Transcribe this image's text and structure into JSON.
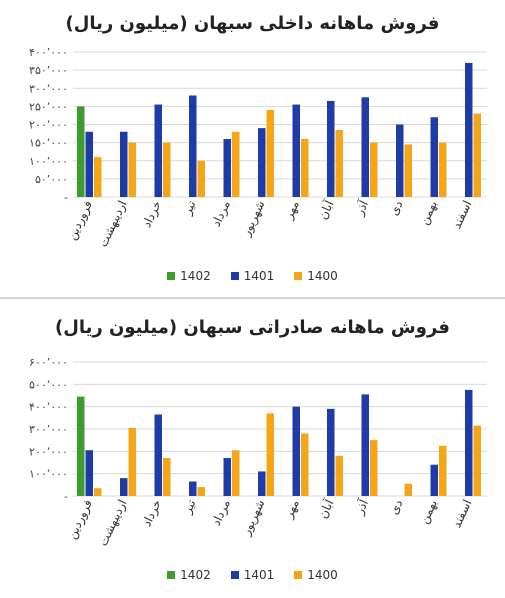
{
  "colors": {
    "s1402": "#3e9b2e",
    "s1401": "#1f3ba8",
    "s1400": "#f5a618"
  },
  "chart_data": [
    {
      "type": "bar",
      "title": "فروش ماهانه داخلی سبهان (میلیون ریال)",
      "categories": [
        "فروردین",
        "اردیبهشت",
        "خرداد",
        "تیر",
        "مرداد",
        "شهریور",
        "مهر",
        "آبان",
        "آذر",
        "دی",
        "بهمن",
        "اسفند"
      ],
      "ylim": [
        0,
        400000
      ],
      "yticks": [
        0,
        50000,
        100000,
        150000,
        200000,
        250000,
        300000,
        350000,
        400000
      ],
      "ytick_labels": [
        "-",
        "۵۰٬۰۰۰",
        "۱۰۰٬۰۰۰",
        "۱۵۰٬۰۰۰",
        "۲۰۰٬۰۰۰",
        "۲۵۰٬۰۰۰",
        "۳۰۰٬۰۰۰",
        "۳۵۰٬۰۰۰",
        "۴۰۰٬۰۰۰"
      ],
      "series": [
        {
          "name": "1402",
          "values": [
            250000,
            null,
            null,
            null,
            null,
            null,
            null,
            null,
            null,
            null,
            null,
            null
          ]
        },
        {
          "name": "1401",
          "values": [
            180000,
            180000,
            255000,
            280000,
            160000,
            190000,
            255000,
            265000,
            275000,
            200000,
            220000,
            370000
          ]
        },
        {
          "name": "1400",
          "values": [
            110000,
            150000,
            150000,
            100000,
            180000,
            240000,
            160000,
            185000,
            150000,
            145000,
            150000,
            230000
          ]
        }
      ],
      "legend": "bottom"
    },
    {
      "type": "bar",
      "title": "فروش ماهانه صادراتی سبهان (میلیون ریال)",
      "categories": [
        "فروردین",
        "اردیبهشت",
        "خرداد",
        "تیر",
        "مرداد",
        "شهریور",
        "مهر",
        "آبان",
        "آذر",
        "دی",
        "بهمن",
        "اسفند"
      ],
      "ylim": [
        0,
        600000
      ],
      "yticks": [
        0,
        100000,
        200000,
        300000,
        400000,
        500000,
        600000
      ],
      "ytick_labels": [
        "-",
        "۱۰۰٬۰۰۰",
        "۲۰۰٬۰۰۰",
        "۳۰۰٬۰۰۰",
        "۴۰۰٬۰۰۰",
        "۵۰۰٬۰۰۰",
        "۶۰۰٬۰۰۰"
      ],
      "series": [
        {
          "name": "1402",
          "values": [
            445000,
            null,
            null,
            null,
            null,
            null,
            null,
            null,
            null,
            null,
            null,
            null
          ]
        },
        {
          "name": "1401",
          "values": [
            205000,
            80000,
            365000,
            65000,
            170000,
            110000,
            400000,
            390000,
            455000,
            0,
            140000,
            475000
          ]
        },
        {
          "name": "1400",
          "values": [
            35000,
            305000,
            170000,
            40000,
            205000,
            370000,
            280000,
            180000,
            250000,
            55000,
            225000,
            315000
          ]
        }
      ],
      "legend": "bottom"
    }
  ]
}
